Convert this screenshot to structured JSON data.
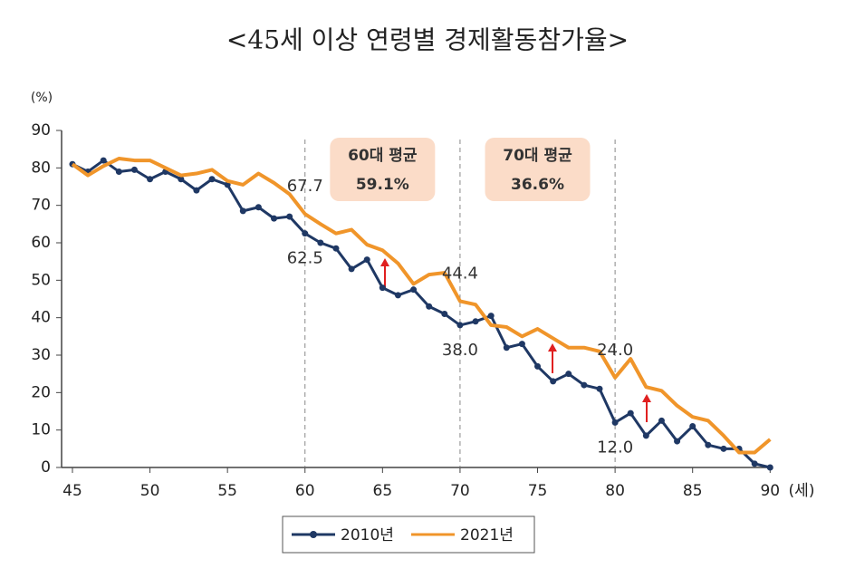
{
  "chart_data": {
    "type": "line",
    "title": "<45세 이상 연령별 경제활동참가율>",
    "y_label": "(%)",
    "x_label": "(세)",
    "x": [
      45,
      46,
      47,
      48,
      49,
      50,
      51,
      52,
      53,
      54,
      55,
      56,
      57,
      58,
      59,
      60,
      61,
      62,
      63,
      64,
      65,
      66,
      67,
      68,
      69,
      70,
      71,
      72,
      73,
      74,
      75,
      76,
      77,
      78,
      79,
      80,
      81,
      82,
      83,
      84,
      85,
      86,
      87,
      88,
      89,
      90
    ],
    "series": [
      {
        "name": "2010년",
        "color": "#1f3864",
        "markers": true,
        "values": [
          81,
          79,
          82,
          79,
          79.5,
          77,
          79,
          77,
          74,
          77,
          75.5,
          68.5,
          69.5,
          66.5,
          67,
          62.5,
          60,
          58.5,
          53,
          55.5,
          48,
          46,
          47.5,
          43,
          41,
          38,
          39,
          40.5,
          32,
          33,
          27,
          23,
          25,
          22,
          21,
          12,
          14.5,
          8.5,
          12.5,
          7,
          11,
          6,
          5,
          5,
          1,
          0
        ],
        "value_labels": [
          null,
          null,
          null,
          null,
          null,
          null,
          null,
          null,
          null,
          null,
          null,
          null,
          null,
          null,
          null,
          "62.5",
          null,
          null,
          null,
          null,
          null,
          null,
          null,
          null,
          null,
          "38.0",
          null,
          null,
          null,
          null,
          null,
          null,
          null,
          null,
          null,
          "12.0",
          null,
          null,
          null,
          null,
          null,
          null,
          null,
          null,
          null,
          null
        ]
      },
      {
        "name": "2021년",
        "color": "#f0952a",
        "markers": false,
        "values": [
          81,
          78,
          80.5,
          82.5,
          82,
          82,
          80,
          78,
          78.5,
          79.5,
          76.5,
          75.5,
          78.5,
          76,
          73,
          67.7,
          65,
          62.5,
          63.5,
          59.5,
          58,
          54.5,
          49,
          51.5,
          52,
          44.4,
          43.5,
          38,
          37.5,
          35,
          37,
          34.5,
          32,
          32,
          31,
          24,
          29,
          21.5,
          20.5,
          16.5,
          13.5,
          12.5,
          8.5,
          4,
          4,
          7.5
        ],
        "value_labels": [
          null,
          null,
          null,
          null,
          null,
          null,
          null,
          null,
          null,
          null,
          null,
          null,
          null,
          null,
          null,
          "67.7",
          null,
          null,
          null,
          null,
          null,
          null,
          null,
          null,
          null,
          "44.4",
          null,
          null,
          null,
          null,
          null,
          null,
          null,
          null,
          null,
          "24.0",
          null,
          null,
          null,
          null,
          null,
          null,
          null,
          null,
          null,
          null
        ]
      }
    ],
    "annotations": [
      {
        "title": "60대 평균",
        "text": "59.1%"
      },
      {
        "title": "70대 평균",
        "text": "36.6%"
      }
    ],
    "vlines": [
      60,
      70,
      80
    ],
    "xlim": [
      44.3,
      90.1
    ],
    "xticks": [
      45,
      50,
      55,
      60,
      65,
      70,
      75,
      80,
      85,
      90
    ],
    "ylim": [
      0,
      90
    ],
    "yticks": [
      0,
      10,
      20,
      30,
      40,
      50,
      60,
      70,
      80,
      90
    ],
    "legend": "bottom"
  }
}
